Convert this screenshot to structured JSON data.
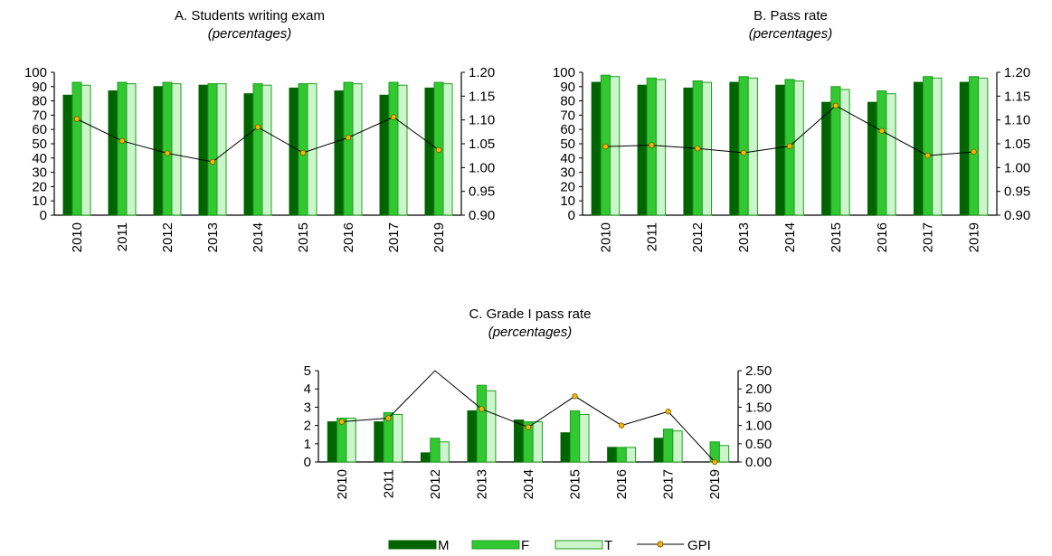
{
  "colors": {
    "M": "#006400",
    "F": "#32c832",
    "T": "#ccf5cc",
    "T_border": "#1e9e1e",
    "F_border": "#1e9e1e",
    "GPI_line": "#000000",
    "GPI_marker": "#f5b800"
  },
  "chart_data": [
    {
      "type": "bar",
      "title": "A. Students writing exam",
      "subtitle": "(percentages)",
      "categories": [
        "2010",
        "2011",
        "2012",
        "2013",
        "2014",
        "2015",
        "2016",
        "2017",
        "2019"
      ],
      "ylim": [
        0,
        100
      ],
      "yticks": [
        "0",
        "10",
        "20",
        "30",
        "40",
        "50",
        "60",
        "70",
        "80",
        "90",
        "100"
      ],
      "y2lim": [
        0.9,
        1.2
      ],
      "y2ticks": [
        "0.90",
        "0.95",
        "1.00",
        "1.05",
        "1.10",
        "1.15",
        "1.20"
      ],
      "series": [
        {
          "name": "M",
          "values": [
            84,
            87,
            90,
            91,
            85,
            89,
            87,
            84,
            89
          ]
        },
        {
          "name": "F",
          "values": [
            93,
            93,
            93,
            92,
            92,
            92,
            93,
            93,
            93
          ]
        },
        {
          "name": "T",
          "values": [
            91,
            92,
            92,
            92,
            91,
            92,
            92,
            91,
            92
          ]
        }
      ],
      "line": {
        "name": "GPI",
        "axis": "secondary",
        "values": [
          1.102,
          1.056,
          1.03,
          1.012,
          1.085,
          1.031,
          1.063,
          1.106,
          1.037
        ]
      }
    },
    {
      "type": "bar",
      "title": "B. Pass rate",
      "subtitle": "(percentages)",
      "categories": [
        "2010",
        "2011",
        "2012",
        "2013",
        "2014",
        "2015",
        "2016",
        "2017",
        "2019"
      ],
      "ylim": [
        0,
        100
      ],
      "yticks": [
        "0",
        "10",
        "20",
        "30",
        "40",
        "50",
        "60",
        "70",
        "80",
        "90",
        "100"
      ],
      "y2lim": [
        0.9,
        1.2
      ],
      "y2ticks": [
        "0.90",
        "0.95",
        "1.00",
        "1.05",
        "1.10",
        "1.15",
        "1.20"
      ],
      "series": [
        {
          "name": "M",
          "values": [
            93,
            91,
            89,
            93,
            91,
            79,
            79,
            93,
            93
          ]
        },
        {
          "name": "F",
          "values": [
            98,
            96,
            94,
            97,
            95,
            90,
            87,
            97,
            97
          ]
        },
        {
          "name": "T",
          "values": [
            97,
            95,
            93,
            96,
            94,
            88,
            85,
            96,
            96
          ]
        }
      ],
      "line": {
        "name": "GPI",
        "axis": "secondary",
        "values": [
          1.044,
          1.047,
          1.04,
          1.031,
          1.045,
          1.13,
          1.077,
          1.025,
          1.033
        ]
      }
    },
    {
      "type": "bar",
      "title": "C. Grade I pass rate",
      "subtitle": "(percentages)",
      "categories": [
        "2010",
        "2011",
        "2012",
        "2013",
        "2014",
        "2015",
        "2016",
        "2017",
        "2019"
      ],
      "ylim": [
        0,
        5
      ],
      "yticks": [
        "0",
        "1",
        "2",
        "3",
        "4",
        "5"
      ],
      "y2lim": [
        0,
        2.5
      ],
      "y2ticks": [
        "0.00",
        "0.50",
        "1.00",
        "1.50",
        "2.00",
        "2.50"
      ],
      "series": [
        {
          "name": "M",
          "values": [
            2.2,
            2.2,
            0.5,
            2.8,
            2.3,
            1.6,
            0.8,
            1.3,
            0.0
          ]
        },
        {
          "name": "F",
          "values": [
            2.4,
            2.7,
            1.3,
            4.2,
            2.2,
            2.8,
            0.8,
            1.8,
            1.1
          ]
        },
        {
          "name": "T",
          "values": [
            2.4,
            2.6,
            1.1,
            3.9,
            2.2,
            2.6,
            0.8,
            1.7,
            0.9
          ]
        }
      ],
      "line": {
        "name": "GPI",
        "axis": "secondary",
        "values": [
          1.1,
          1.2,
          2.5,
          1.45,
          0.95,
          1.8,
          1.0,
          1.38,
          0.0
        ],
        "marker_skip": [
          2
        ]
      }
    }
  ],
  "legend": {
    "position": "bottom-center",
    "items": [
      {
        "key": "M",
        "label": "M"
      },
      {
        "key": "F",
        "label": "F"
      },
      {
        "key": "T",
        "label": "T"
      },
      {
        "key": "GPI",
        "label": "GPI"
      }
    ]
  }
}
